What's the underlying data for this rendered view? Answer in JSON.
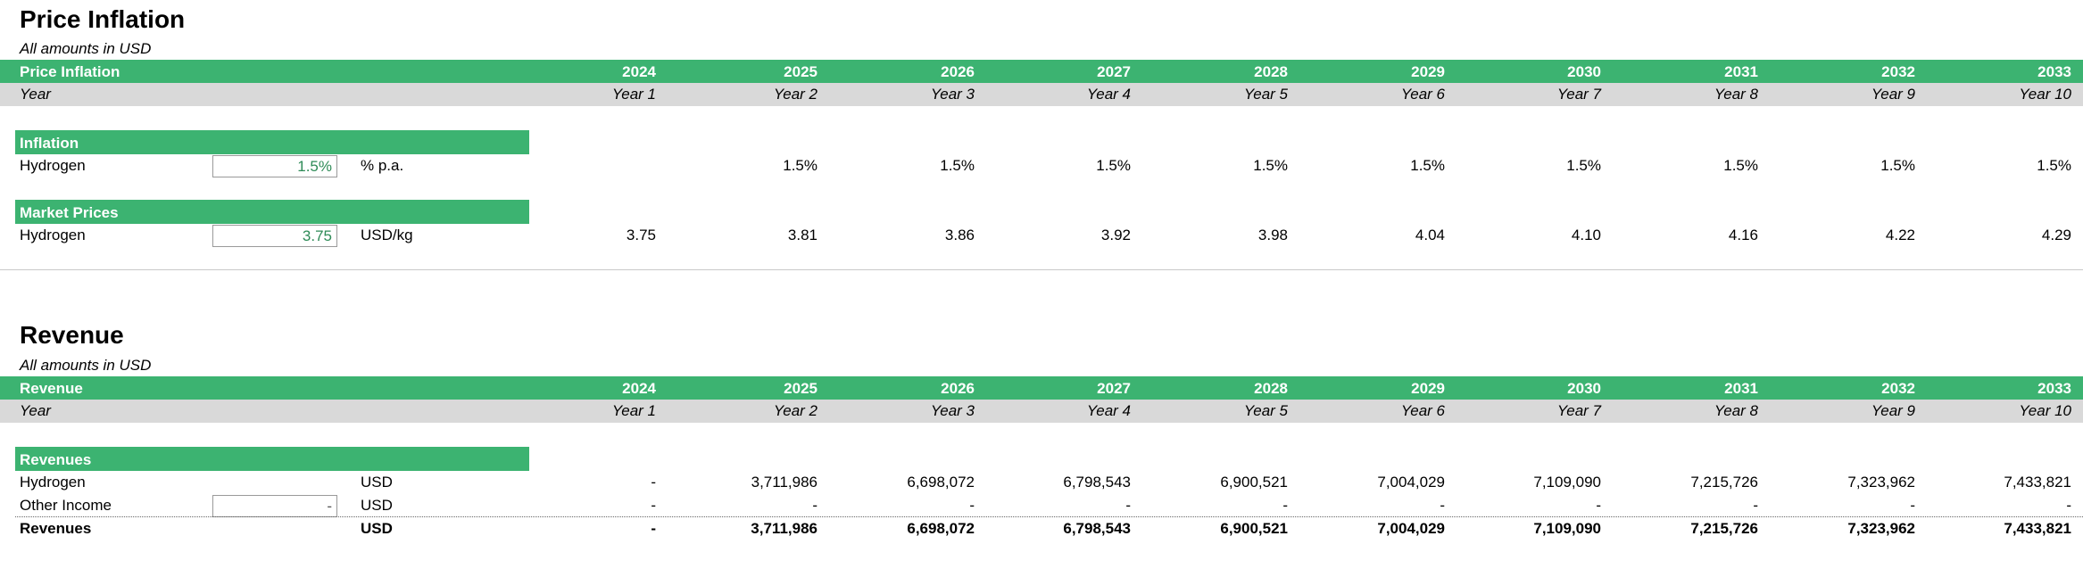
{
  "years": [
    "2024",
    "2025",
    "2026",
    "2027",
    "2028",
    "2029",
    "2030",
    "2031",
    "2032",
    "2033"
  ],
  "year_labels": [
    "Year 1",
    "Year 2",
    "Year 3",
    "Year 4",
    "Year 5",
    "Year 6",
    "Year 7",
    "Year 8",
    "Year 9",
    "Year 10"
  ],
  "price_inflation": {
    "title": "Price Inflation",
    "subtitle": "All amounts in USD",
    "band_label": "Price Inflation",
    "year_row_label": "Year",
    "inflation_section": {
      "header": "Inflation",
      "row_label": "Hydrogen",
      "input": "1.5%",
      "unit": "% p.a.",
      "values": [
        "",
        "1.5%",
        "1.5%",
        "1.5%",
        "1.5%",
        "1.5%",
        "1.5%",
        "1.5%",
        "1.5%",
        "1.5%"
      ]
    },
    "market_section": {
      "header": "Market Prices",
      "row_label": "Hydrogen",
      "input": "3.75",
      "unit": "USD/kg",
      "values": [
        "3.75",
        "3.81",
        "3.86",
        "3.92",
        "3.98",
        "4.04",
        "4.10",
        "4.16",
        "4.22",
        "4.29"
      ]
    }
  },
  "revenue": {
    "title": "Revenue",
    "subtitle": "All amounts in USD",
    "band_label": "Revenue",
    "year_row_label": "Year",
    "section_header": "Revenues",
    "rows": [
      {
        "label": "Hydrogen",
        "input": "",
        "unit": "USD",
        "values": [
          "-",
          "3,711,986",
          "6,698,072",
          "6,798,543",
          "6,900,521",
          "7,004,029",
          "7,109,090",
          "7,215,726",
          "7,323,962",
          "7,433,821"
        ]
      },
      {
        "label": "Other Income",
        "input": "-",
        "unit": "USD",
        "values": [
          "-",
          "-",
          "-",
          "-",
          "-",
          "-",
          "-",
          "-",
          "-",
          "-"
        ]
      }
    ],
    "total": {
      "label": "Revenues",
      "unit": "USD",
      "values": [
        "-",
        "3,711,986",
        "6,698,072",
        "6,798,543",
        "6,900,521",
        "7,004,029",
        "7,109,090",
        "7,215,726",
        "7,323,962",
        "7,433,821"
      ]
    }
  }
}
